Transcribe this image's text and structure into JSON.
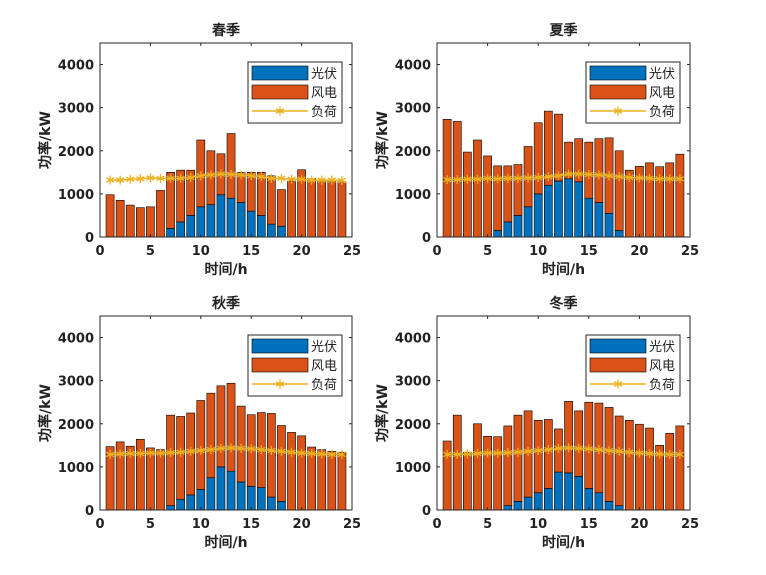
{
  "colors": {
    "pv": "#0072BD",
    "wind": "#D95319",
    "load": "#EDB120",
    "axis": "#262626"
  },
  "chart_data": [
    {
      "type": "bar",
      "title": "春季",
      "xlabel": "时间/h",
      "ylabel": "功率/kW",
      "xlim": [
        0,
        25
      ],
      "ylim": [
        0,
        4500
      ],
      "xticks": [
        "0",
        "5",
        "10",
        "15",
        "20",
        "25"
      ],
      "yticks": [
        "0",
        "1000",
        "2000",
        "3000",
        "4000"
      ],
      "legend": [
        "光伏",
        "风电",
        "负荷"
      ],
      "x": [
        1,
        2,
        3,
        4,
        5,
        6,
        7,
        8,
        9,
        10,
        11,
        12,
        13,
        14,
        15,
        16,
        17,
        18,
        19,
        20,
        21,
        22,
        23,
        24
      ],
      "series": [
        {
          "name": "光伏",
          "values": [
            0,
            0,
            0,
            0,
            0,
            0,
            200,
            350,
            500,
            700,
            750,
            980,
            900,
            800,
            600,
            500,
            300,
            250,
            0,
            0,
            0,
            0,
            0,
            0
          ]
        },
        {
          "name": "风电",
          "values": [
            980,
            850,
            740,
            680,
            700,
            1080,
            1300,
            1200,
            1050,
            1550,
            1250,
            950,
            1500,
            700,
            900,
            1000,
            1120,
            850,
            1300,
            1560,
            1350,
            1300,
            1300,
            1280
          ]
        },
        {
          "name": "负荷",
          "values": [
            1320,
            1320,
            1340,
            1350,
            1370,
            1360,
            1360,
            1360,
            1380,
            1420,
            1440,
            1460,
            1450,
            1440,
            1420,
            1400,
            1360,
            1360,
            1340,
            1340,
            1320,
            1320,
            1320,
            1310
          ]
        }
      ]
    },
    {
      "type": "bar",
      "title": "夏季",
      "xlabel": "时间/h",
      "ylabel": "功率/kW",
      "xlim": [
        0,
        25
      ],
      "ylim": [
        0,
        4500
      ],
      "xticks": [
        "0",
        "5",
        "10",
        "15",
        "20",
        "25"
      ],
      "yticks": [
        "0",
        "1000",
        "2000",
        "3000",
        "4000"
      ],
      "legend": [
        "光伏",
        "风电",
        "负荷"
      ],
      "x": [
        1,
        2,
        3,
        4,
        5,
        6,
        7,
        8,
        9,
        10,
        11,
        12,
        13,
        14,
        15,
        16,
        17,
        18,
        19,
        20,
        21,
        22,
        23,
        24
      ],
      "series": [
        {
          "name": "光伏",
          "values": [
            0,
            0,
            0,
            0,
            0,
            150,
            350,
            500,
            700,
            1000,
            1200,
            1300,
            1350,
            1280,
            900,
            800,
            550,
            150,
            0,
            0,
            0,
            0,
            0,
            0
          ]
        },
        {
          "name": "风电",
          "values": [
            2730,
            2680,
            1970,
            2250,
            1880,
            1500,
            1300,
            1180,
            1400,
            1650,
            1720,
            1550,
            850,
            1000,
            1300,
            1480,
            1750,
            1850,
            1550,
            1640,
            1720,
            1630,
            1720,
            1920
          ]
        },
        {
          "name": "负荷",
          "values": [
            1330,
            1330,
            1340,
            1340,
            1360,
            1350,
            1360,
            1360,
            1370,
            1380,
            1400,
            1420,
            1460,
            1460,
            1450,
            1440,
            1420,
            1400,
            1380,
            1370,
            1360,
            1350,
            1350,
            1350
          ]
        }
      ]
    },
    {
      "type": "bar",
      "title": "秋季",
      "xlabel": "时间/h",
      "ylabel": "功率/kW",
      "xlim": [
        0,
        25
      ],
      "ylim": [
        0,
        4500
      ],
      "xticks": [
        "0",
        "5",
        "10",
        "15",
        "20",
        "25"
      ],
      "yticks": [
        "0",
        "1000",
        "2000",
        "3000",
        "4000"
      ],
      "legend": [
        "光伏",
        "风电",
        "负荷"
      ],
      "x": [
        1,
        2,
        3,
        4,
        5,
        6,
        7,
        8,
        9,
        10,
        11,
        12,
        13,
        14,
        15,
        16,
        17,
        18,
        19,
        20,
        21,
        22,
        23,
        24
      ],
      "series": [
        {
          "name": "光伏",
          "values": [
            0,
            0,
            0,
            0,
            0,
            0,
            100,
            250,
            350,
            480,
            750,
            1000,
            900,
            650,
            550,
            520,
            300,
            200,
            0,
            0,
            0,
            0,
            0,
            0
          ]
        },
        {
          "name": "风电",
          "values": [
            1470,
            1580,
            1480,
            1640,
            1440,
            1400,
            2100,
            1920,
            1900,
            2060,
            1960,
            1880,
            2040,
            1760,
            1660,
            1740,
            1940,
            1760,
            1800,
            1720,
            1460,
            1400,
            1360,
            1340
          ]
        },
        {
          "name": "负荷",
          "values": [
            1290,
            1300,
            1310,
            1310,
            1320,
            1320,
            1330,
            1340,
            1360,
            1380,
            1400,
            1430,
            1440,
            1430,
            1420,
            1400,
            1380,
            1360,
            1340,
            1320,
            1310,
            1300,
            1290,
            1290
          ]
        }
      ]
    },
    {
      "type": "bar",
      "title": "冬季",
      "xlabel": "时间/h",
      "ylabel": "功率/kW",
      "xlim": [
        0,
        25
      ],
      "ylim": [
        0,
        4500
      ],
      "xticks": [
        "0",
        "5",
        "10",
        "15",
        "20",
        "25"
      ],
      "yticks": [
        "0",
        "1000",
        "2000",
        "3000",
        "4000"
      ],
      "legend": [
        "光伏",
        "风电",
        "负荷"
      ],
      "x": [
        1,
        2,
        3,
        4,
        5,
        6,
        7,
        8,
        9,
        10,
        11,
        12,
        13,
        14,
        15,
        16,
        17,
        18,
        19,
        20,
        21,
        22,
        23,
        24
      ],
      "series": [
        {
          "name": "光伏",
          "values": [
            0,
            0,
            0,
            0,
            0,
            0,
            100,
            200,
            300,
            400,
            500,
            880,
            860,
            780,
            500,
            400,
            200,
            100,
            0,
            0,
            0,
            0,
            0,
            0
          ]
        },
        {
          "name": "风电",
          "values": [
            1600,
            2200,
            1340,
            2000,
            1710,
            1700,
            1850,
            2000,
            2000,
            1680,
            1600,
            1000,
            1660,
            1520,
            2000,
            2080,
            2180,
            2080,
            2080,
            1990,
            1900,
            1500,
            1780,
            1950
          ]
        },
        {
          "name": "负荷",
          "values": [
            1290,
            1290,
            1300,
            1310,
            1320,
            1320,
            1330,
            1340,
            1360,
            1380,
            1400,
            1430,
            1440,
            1430,
            1420,
            1400,
            1380,
            1360,
            1340,
            1320,
            1310,
            1300,
            1290,
            1290
          ]
        }
      ]
    }
  ]
}
